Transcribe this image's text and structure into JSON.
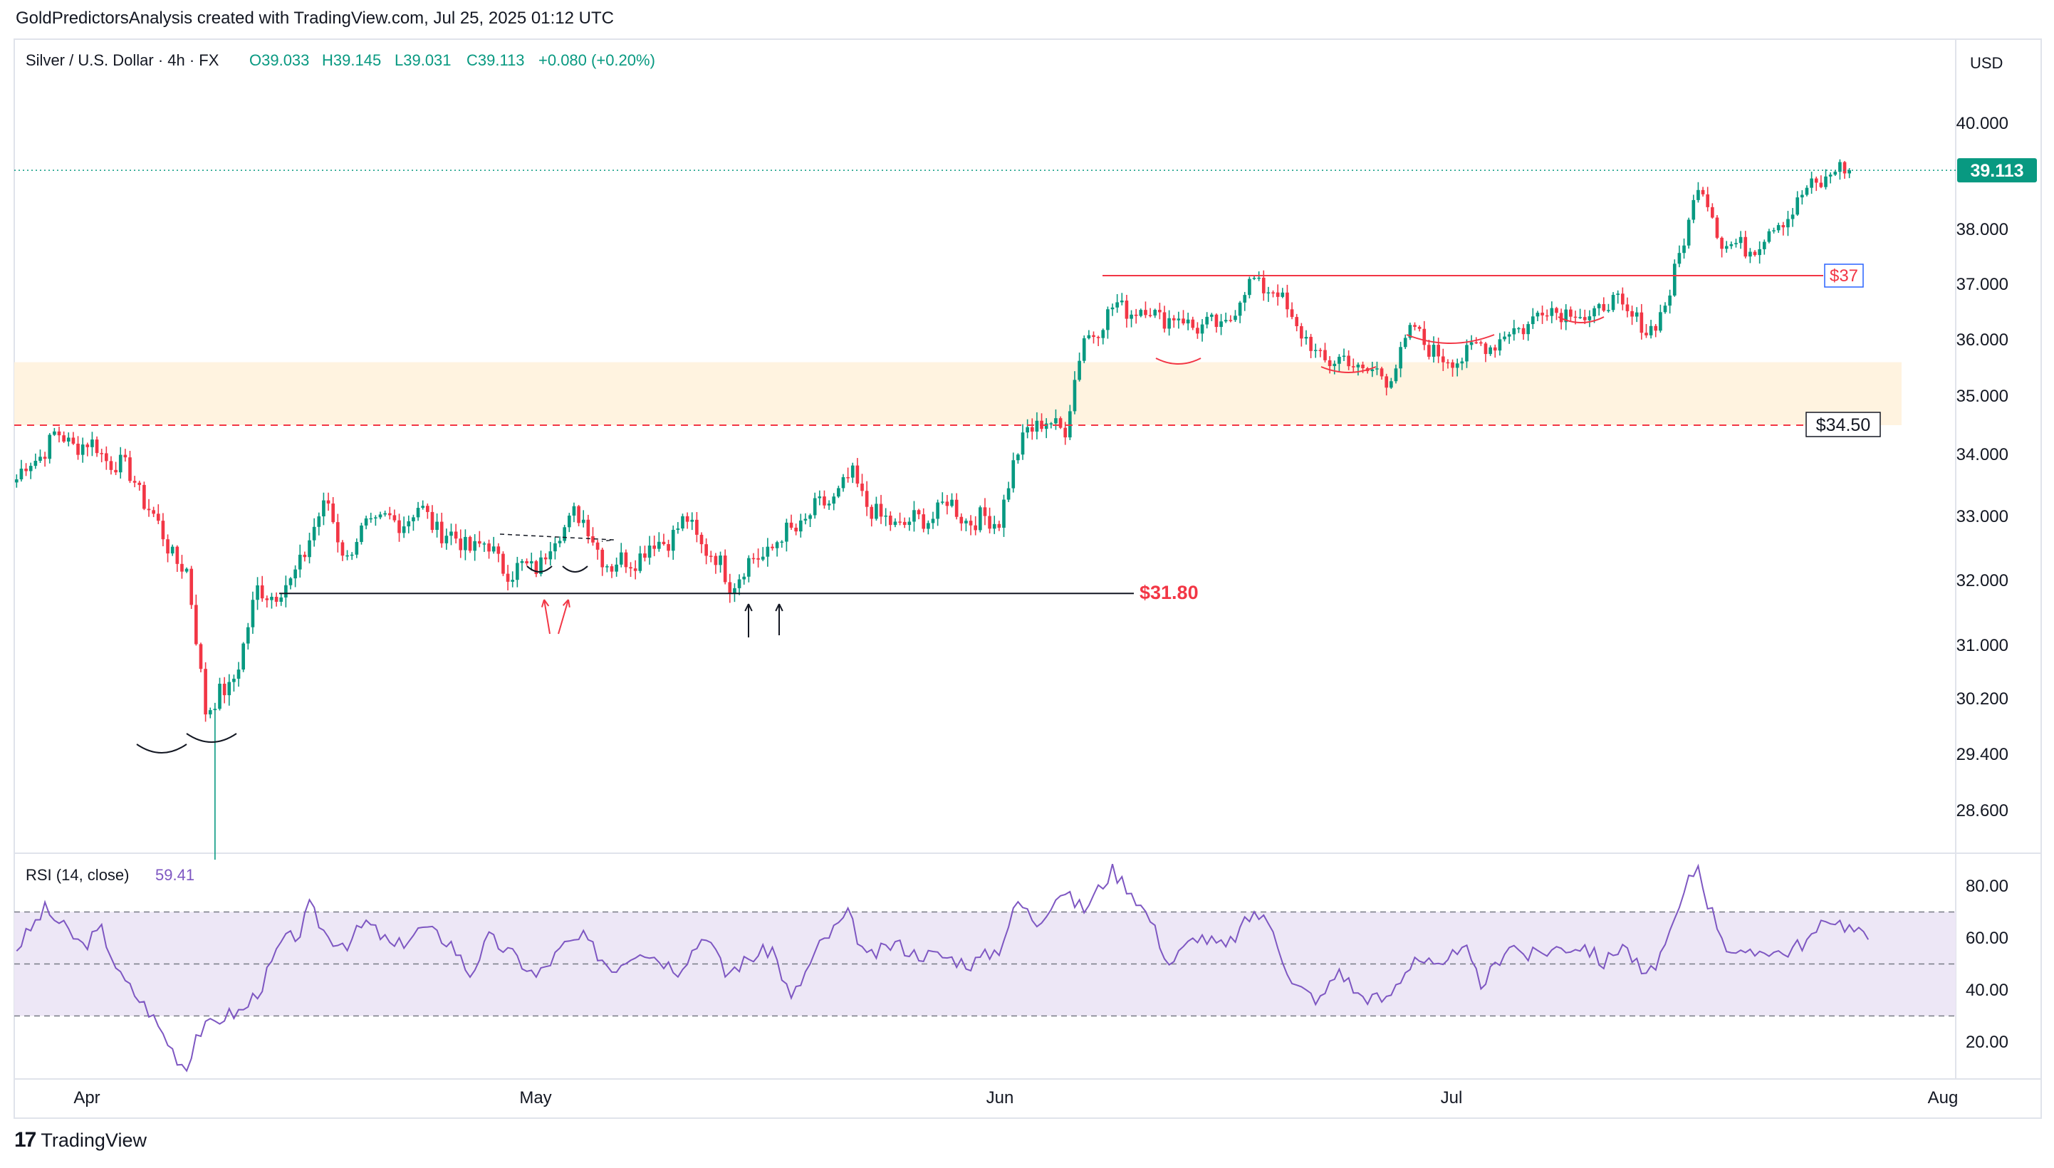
{
  "header": {
    "caption": "GoldPredictorsAnalysis created with TradingView.com, Jul 25, 2025 01:12 UTC"
  },
  "symbol_info": {
    "title": "Silver / U.S. Dollar · 4h · FX",
    "open": "O39.033",
    "high": "H39.145",
    "low": "L39.031",
    "close": "C39.113",
    "change": "+0.080 (+0.20%)"
  },
  "currency_label": "USD",
  "footer": {
    "brand": "TradingView"
  },
  "colors": {
    "up": "#089981",
    "down": "#f23645",
    "accent": "#22ab94",
    "rsi_line": "#7e57c2",
    "rsi_band": "#ede7f6",
    "support_zone": "#fff3e0",
    "annotation_red": "#f23645"
  },
  "chart_data": [
    {
      "type": "candlestick",
      "x_axis": {
        "tick_labels": [
          "Apr",
          "May",
          "Jun",
          "Jul",
          "Aug"
        ]
      },
      "y_axis": {
        "tick_labels": [
          "40.000",
          "38.000",
          "37.000",
          "36.000",
          "35.000",
          "34.000",
          "33.000",
          "32.000",
          "31.000",
          "30.200",
          "29.400",
          "28.600"
        ],
        "range": [
          27.9,
          41.0
        ]
      },
      "last_price": 39.113,
      "last_price_label": "39.113",
      "series": [
        {
          "name": "Silver / U.S. Dollar",
          "waypoints": [
            [
              0,
              33.6
            ],
            [
              8,
              34.3
            ],
            [
              17,
              34.1
            ],
            [
              25,
              33.6
            ],
            [
              30,
              32.8
            ],
            [
              36,
              32.1
            ],
            [
              40,
              30.1
            ],
            [
              45,
              30.3
            ],
            [
              51,
              31.8
            ],
            [
              58,
              31.9
            ],
            [
              62,
              32.7
            ],
            [
              66,
              33.2
            ],
            [
              70,
              32.3
            ],
            [
              74,
              32.9
            ],
            [
              80,
              32.9
            ],
            [
              85,
              33.1
            ],
            [
              93,
              32.6
            ],
            [
              100,
              32.5
            ],
            [
              105,
              32.1
            ],
            [
              111,
              32.3
            ],
            [
              118,
              33.1
            ],
            [
              126,
              32.2
            ],
            [
              134,
              32.5
            ],
            [
              142,
              32.9
            ],
            [
              151,
              32.0
            ],
            [
              156,
              32.3
            ],
            [
              168,
              33.0
            ],
            [
              177,
              33.6
            ],
            [
              183,
              32.9
            ],
            [
              191,
              32.9
            ],
            [
              197,
              33.2
            ],
            [
              203,
              32.9
            ],
            [
              208,
              33.0
            ],
            [
              214,
              34.5
            ],
            [
              222,
              34.5
            ],
            [
              226,
              36.0
            ],
            [
              233,
              36.6
            ],
            [
              240,
              36.5
            ],
            [
              248,
              36.3
            ],
            [
              255,
              36.2
            ],
            [
              262,
              37.1
            ],
            [
              267,
              36.8
            ],
            [
              275,
              35.7
            ],
            [
              282,
              35.6
            ],
            [
              290,
              35.3
            ],
            [
              296,
              36.2
            ],
            [
              302,
              35.6
            ],
            [
              308,
              35.8
            ],
            [
              316,
              36.1
            ],
            [
              325,
              36.6
            ],
            [
              332,
              36.4
            ],
            [
              339,
              36.7
            ],
            [
              345,
              36.1
            ],
            [
              350,
              36.8
            ],
            [
              356,
              38.9
            ],
            [
              361,
              37.8
            ],
            [
              366,
              37.6
            ],
            [
              373,
              38.1
            ],
            [
              380,
              38.8
            ],
            [
              385,
              39.1
            ],
            [
              388,
              39.1
            ]
          ],
          "ohlc_note": "4h candles, ~389 bars from late Mar to Jul 25 2025"
        }
      ],
      "annotations": {
        "resistance": {
          "value": 37.0,
          "label": "$37"
        },
        "support_dashed": {
          "value": 34.5,
          "label": "$34.50"
        },
        "support_zone": {
          "from": 34.5,
          "to": 35.6
        },
        "support_line": {
          "value": 31.8,
          "label": "$31.80"
        }
      }
    },
    {
      "type": "line",
      "title": "RSI (14, close)",
      "current_value_label": "59.41",
      "y_axis": {
        "tick_labels": [
          "80.00",
          "60.00",
          "40.00",
          "20.00"
        ],
        "range": [
          8,
          92
        ]
      },
      "levels": [
        70,
        50,
        30
      ],
      "series": [
        {
          "name": "RSI (14, close)",
          "waypoints": [
            [
              0,
              56
            ],
            [
              6,
              71
            ],
            [
              10,
              64
            ],
            [
              14,
              57
            ],
            [
              18,
              63
            ],
            [
              22,
              45
            ],
            [
              28,
              32
            ],
            [
              30,
              26
            ],
            [
              32,
              20
            ],
            [
              34,
              14
            ],
            [
              36,
              10
            ],
            [
              38,
              23
            ],
            [
              44,
              30
            ],
            [
              48,
              32
            ],
            [
              52,
              42
            ],
            [
              56,
              58
            ],
            [
              60,
              62
            ],
            [
              62,
              72
            ],
            [
              66,
              60
            ],
            [
              70,
              58
            ],
            [
              74,
              66
            ],
            [
              80,
              56
            ],
            [
              86,
              64
            ],
            [
              92,
              58
            ],
            [
              96,
              46
            ],
            [
              100,
              60
            ],
            [
              106,
              52
            ],
            [
              110,
              45
            ],
            [
              116,
              57
            ],
            [
              120,
              60
            ],
            [
              126,
              48
            ],
            [
              132,
              56
            ],
            [
              140,
              48
            ],
            [
              146,
              62
            ],
            [
              150,
              46
            ],
            [
              155,
              52
            ],
            [
              160,
              56
            ],
            [
              164,
              36
            ],
            [
              170,
              57
            ],
            [
              176,
              69
            ],
            [
              180,
              52
            ],
            [
              186,
              58
            ],
            [
              190,
              54
            ],
            [
              196,
              53
            ],
            [
              202,
              50
            ],
            [
              208,
              56
            ],
            [
              212,
              74
            ],
            [
              216,
              66
            ],
            [
              221,
              78
            ],
            [
              226,
              71
            ],
            [
              232,
              86
            ],
            [
              236,
              78
            ],
            [
              240,
              67
            ],
            [
              244,
              50
            ],
            [
              250,
              61
            ],
            [
              256,
              56
            ],
            [
              262,
              70
            ],
            [
              266,
              64
            ],
            [
              270,
              42
            ],
            [
              276,
              36
            ],
            [
              280,
              48
            ],
            [
              284,
              38
            ],
            [
              290,
              36
            ],
            [
              296,
              53
            ],
            [
              302,
              47
            ],
            [
              306,
              59
            ],
            [
              310,
              41
            ],
            [
              316,
              58
            ],
            [
              320,
              53
            ],
            [
              326,
              56
            ],
            [
              332,
              57
            ],
            [
              336,
              50
            ],
            [
              340,
              58
            ],
            [
              345,
              44
            ],
            [
              350,
              60
            ],
            [
              354,
              82
            ],
            [
              356,
              88
            ],
            [
              358,
              74
            ],
            [
              362,
              57
            ],
            [
              366,
              52
            ],
            [
              370,
              56
            ],
            [
              374,
              54
            ],
            [
              380,
              60
            ],
            [
              384,
              68
            ],
            [
              388,
              64
            ],
            [
              392,
              59.41
            ]
          ]
        }
      ]
    }
  ]
}
